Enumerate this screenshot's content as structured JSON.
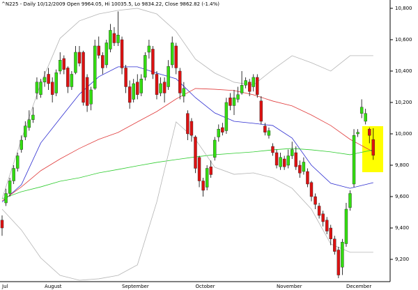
{
  "chart_data": {
    "type": "candlestick",
    "title": "^N225 - Daily 10/12/2009 Open 9964.05, Hi 10035.5, Lo 9834.22, Close 9862.82 (-1.4%)",
    "categories": [
      "Jul",
      null,
      null,
      null,
      null,
      null,
      null,
      null,
      null,
      null,
      null,
      "August",
      null,
      null,
      null,
      null,
      null,
      null,
      null,
      null,
      null,
      null,
      null,
      null,
      null,
      null,
      null,
      null,
      null,
      null,
      null,
      "September",
      null,
      null,
      null,
      null,
      null,
      null,
      null,
      null,
      null,
      null,
      null,
      null,
      null,
      null,
      null,
      null,
      null,
      null,
      "October",
      null,
      null,
      null,
      null,
      null,
      null,
      null,
      null,
      null,
      null,
      null,
      null,
      null,
      null,
      null,
      null,
      null,
      null,
      null,
      null,
      "November",
      null,
      null,
      null,
      null,
      null,
      null,
      null,
      null,
      null,
      null,
      null,
      null,
      null,
      null,
      null,
      null,
      null,
      "December",
      null,
      null,
      null,
      null,
      null,
      null,
      null
    ],
    "open": [
      9450,
      9560,
      9620,
      9700,
      9780,
      9900,
      9980,
      10040,
      10090,
      10260,
      10250,
      10330,
      10380,
      10330,
      10260,
      10400,
      10480,
      10420,
      10300,
      10390,
      10520,
      10520,
      10360,
      10190,
      10290,
      10560,
      10500,
      10440,
      10540,
      10640,
      10580,
      10600,
      10420,
      10300,
      10220,
      10330,
      10260,
      10360,
      10520,
      10540,
      10380,
      10260,
      10330,
      10300,
      10440,
      10560,
      10400,
      10240,
      10130,
      10080,
      9980,
      9850,
      9700,
      9660,
      9790,
      9850,
      9980,
      10040,
      10020,
      10230,
      10180,
      10220,
      10260,
      10310,
      10330,
      10300,
      10360,
      10210,
      10050,
      9990,
      9920,
      9880,
      9790,
      9840,
      9800,
      9860,
      9880,
      9800,
      9760,
      9760,
      9690,
      9600,
      9540,
      9490,
      9450,
      9400,
      9330,
      9260,
      9150,
      9300,
      9530,
      9680,
      10000,
      10130,
      10080,
      10030,
      9964.05
    ],
    "high": [
      9480,
      9650,
      9720,
      9800,
      9880,
      9990,
      10080,
      10150,
      10170,
      10360,
      10350,
      10400,
      10420,
      10360,
      10410,
      10520,
      10500,
      10430,
      10400,
      10560,
      10560,
      10530,
      10380,
      10300,
      10600,
      10620,
      10520,
      10600,
      10700,
      10680,
      10780,
      10620,
      10440,
      10340,
      10350,
      10380,
      10380,
      10520,
      10600,
      10560,
      10400,
      10360,
      10360,
      10470,
      10620,
      10580,
      10420,
      10330,
      10150,
      10100,
      9990,
      9860,
      9720,
      9800,
      9830,
      9980,
      10060,
      10070,
      10230,
      10260,
      10280,
      10300,
      10400,
      10360,
      10350,
      10380,
      10380,
      10240,
      10070,
      10040,
      9940,
      9900,
      9880,
      9860,
      9900,
      9950,
      9920,
      9830,
      9850,
      9780,
      9700,
      9620,
      9560,
      9510,
      9470,
      9420,
      9350,
      9280,
      9330,
      9560,
      9640,
      10030,
      10030,
      10220,
      10160,
      10040,
      10035.5
    ],
    "low": [
      9350,
      9540,
      9600,
      9680,
      9760,
      9880,
      9960,
      10020,
      10070,
      10220,
      10230,
      10300,
      10280,
      10200,
      10240,
      10380,
      10380,
      10260,
      10280,
      10380,
      10430,
      10180,
      10140,
      10150,
      10280,
      10480,
      10380,
      10420,
      10520,
      10560,
      10560,
      10380,
      10260,
      10160,
      10200,
      10220,
      10240,
      10340,
      10480,
      10350,
      10220,
      10240,
      10200,
      10280,
      10420,
      10380,
      10220,
      10200,
      9960,
      9950,
      9750,
      9660,
      9600,
      9640,
      9720,
      9830,
      9950,
      9990,
      10000,
      10150,
      10120,
      10200,
      10250,
      10290,
      10240,
      10270,
      10230,
      10060,
      9990,
      9970,
      9860,
      9780,
      9770,
      9770,
      9780,
      9840,
      9770,
      9720,
      9740,
      9660,
      9570,
      9520,
      9460,
      9410,
      9360,
      9290,
      9230,
      9080,
      9100,
      9280,
      9510,
      9660,
      9980,
      10100,
      10060,
      9940,
      9834.22
    ],
    "close": [
      9400,
      9620,
      9700,
      9780,
      9860,
      9960,
      10050,
      10090,
      10120,
      10330,
      10330,
      10360,
      10320,
      10250,
      10390,
      10470,
      10410,
      10300,
      10380,
      10520,
      10450,
      10200,
      10180,
      10280,
      10560,
      10500,
      10420,
      10580,
      10660,
      10580,
      10630,
      10420,
      10300,
      10200,
      10320,
      10250,
      10350,
      10500,
      10560,
      10380,
      10250,
      10320,
      10260,
      10430,
      10580,
      10420,
      10260,
      10290,
      10000,
      9990,
      9780,
      9700,
      9640,
      9780,
      9740,
      9960,
      10030,
      10010,
      10200,
      10180,
      10230,
      10250,
      10310,
      10340,
      10270,
      10360,
      10250,
      10080,
      10010,
      10020,
      9880,
      9800,
      9850,
      9790,
      9860,
      9900,
      9790,
      9750,
      9820,
      9680,
      9600,
      9550,
      9480,
      9440,
      9380,
      9330,
      9250,
      9100,
      9310,
      9520,
      9620,
      9990,
      10010,
      10170,
      10130,
      9990,
      9862.82
    ],
    "up_color": "#33dd11",
    "down_color": "#dd1111",
    "overlays": [
      {
        "color": "#2a2ad0",
        "x": [
          0,
          5,
          10,
          15,
          20,
          25,
          30,
          35,
          40,
          45,
          50,
          55,
          60,
          65,
          70,
          75,
          80,
          85,
          90,
          96
        ],
        "values": [
          9565,
          9676,
          9942,
          10098,
          10253,
          10364,
          10427,
          10427,
          10387,
          10351,
          10231,
          10133,
          10080,
          10067,
          10053,
          9973,
          9800,
          9685,
          9653,
          9689
        ]
      },
      {
        "color": "#e03a3a",
        "x": [
          0,
          5,
          10,
          15,
          20,
          25,
          30,
          35,
          40,
          45,
          50,
          55,
          60,
          65,
          70,
          75,
          80,
          85,
          90,
          96
        ],
        "values": [
          9573,
          9662,
          9765,
          9840,
          9907,
          9965,
          10009,
          10076,
          10142,
          10222,
          10289,
          10284,
          10276,
          10249,
          10209,
          10178,
          10120,
          10053,
          9965,
          9885
        ]
      },
      {
        "color": "#2ecc2e",
        "x": [
          0,
          5,
          10,
          15,
          20,
          25,
          30,
          35,
          40,
          45,
          50,
          55,
          60,
          65,
          70,
          75,
          80,
          85,
          90,
          96
        ],
        "values": [
          9587,
          9631,
          9662,
          9698,
          9720,
          9751,
          9773,
          9796,
          9818,
          9836,
          9853,
          9867,
          9876,
          9885,
          9898,
          9907,
          9898,
          9885,
          9867,
          9898
        ]
      },
      {
        "color": "#b4b4b4",
        "x": [
          0,
          5,
          10,
          15,
          20,
          25,
          30,
          35,
          40,
          45,
          50,
          55,
          60,
          65,
          70,
          75,
          80,
          85,
          90,
          96
        ],
        "values": [
          9587,
          9965,
          10320,
          10609,
          10720,
          10764,
          10787,
          10800,
          10764,
          10653,
          10476,
          10387,
          10329,
          10311,
          10409,
          10498,
          10453,
          10400,
          10498,
          10498
        ]
      },
      {
        "color": "#b4b4b4",
        "x": [
          0,
          5,
          10,
          15,
          20,
          25,
          30,
          35,
          40,
          45,
          50,
          55,
          60,
          65,
          70,
          75,
          80,
          85,
          90,
          96
        ],
        "values": [
          9520,
          9387,
          9209,
          9098,
          9067,
          9076,
          9098,
          9165,
          9565,
          10076,
          9965,
          9787,
          9742,
          9751,
          9720,
          9653,
          9520,
          9298,
          9245,
          9245
        ]
      }
    ],
    "ylim": [
      9058,
      10853
    ],
    "yticks": [
      {
        "value": 9200,
        "label": "9,200"
      },
      {
        "value": 9400,
        "label": "9,400"
      },
      {
        "value": 9600,
        "label": "9,600"
      },
      {
        "value": 9800,
        "label": "9,800"
      },
      {
        "value": 10000,
        "label": "10,000"
      },
      {
        "value": 10200,
        "label": "10,200"
      },
      {
        "value": 10400,
        "label": "10,400"
      },
      {
        "value": 10600,
        "label": "10,600"
      },
      {
        "value": 10800,
        "label": "10,800"
      }
    ],
    "grid": false
  }
}
